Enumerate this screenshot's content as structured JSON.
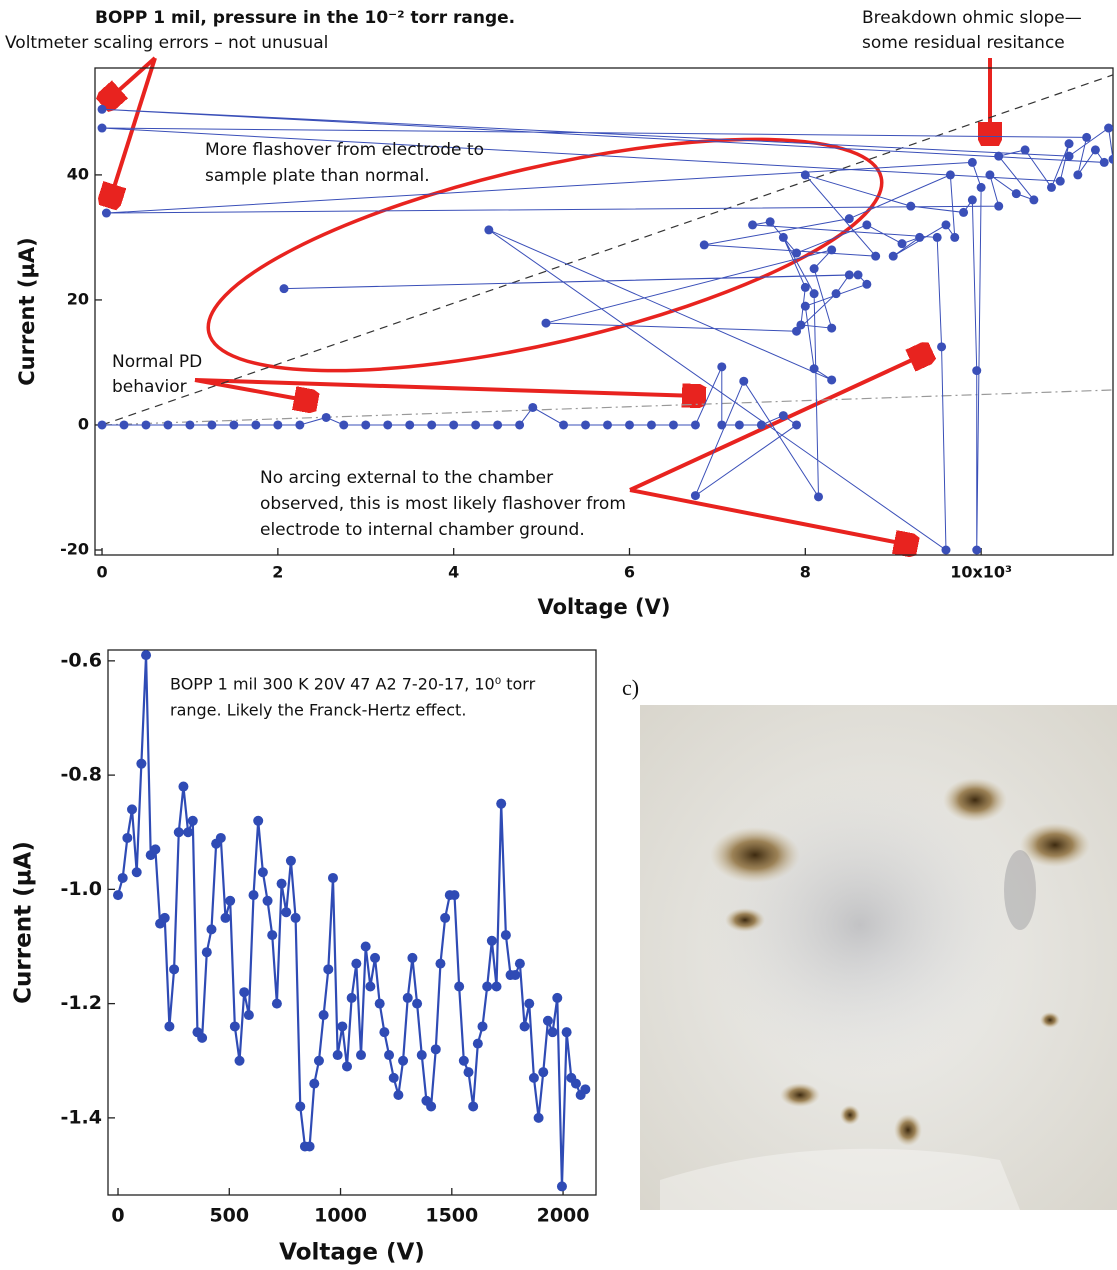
{
  "chart_data": [
    {
      "type": "line",
      "title": "BOPP 1 mil, pressure in the 10⁻² torr range.",
      "annotations": [
        [
          "Voltmeter scaling errors – not unusual"
        ],
        [
          "Breakdown ohmic slope—",
          "some residual resitance"
        ],
        [
          "More flashover from electrode to",
          "sample plate than normal."
        ],
        [
          "Normal PD",
          "behavior"
        ],
        [
          "No arcing external to the chamber",
          "observed, this is most likely flashover from",
          "electrode to internal chamber ground."
        ]
      ],
      "x_label": "Voltage (V)",
      "y_label": "Current (µA)",
      "xlim": [
        -0.08,
        11.5
      ],
      "ylim": [
        -20.8,
        57.1
      ],
      "xticks": [
        0,
        2,
        4,
        6,
        8,
        {
          "value": 10,
          "label": "10x10³"
        }
      ],
      "yticks": [
        -20,
        0,
        20,
        40
      ],
      "reference_lines": [
        {
          "x": [
            0,
            11.5
          ],
          "y": [
            0,
            56
          ],
          "dash": "8 6",
          "color": "#333333"
        },
        {
          "x": [
            0,
            11.5
          ],
          "y": [
            0,
            5.6
          ],
          "dash": "10 4 2 4",
          "color": "#999999"
        }
      ],
      "x": [
        0,
        0.25,
        0.5,
        0.75,
        1,
        1.25,
        1.5,
        1.75,
        2,
        2.25,
        2.55,
        2.75,
        3,
        3.25,
        3.5,
        3.75,
        4,
        4.25,
        4.5,
        4.75,
        4.9,
        5.25,
        5.5,
        5.75,
        6,
        6.25,
        6.5,
        6.75,
        7.05,
        7.05,
        7.25,
        7.5,
        7.75,
        7.9,
        6.75,
        7.3,
        8.15,
        8.1,
        7.75,
        8.0,
        7.95,
        8.3,
        8.1,
        8.3,
        5.05,
        7.9,
        8.35,
        8.5,
        2.07,
        8.6,
        8.7,
        8.0,
        8.1,
        8.3,
        4.4,
        9.6,
        9.55,
        9.5,
        7.4,
        7.6,
        7.9,
        8.7,
        9.1,
        9.3,
        9.0,
        9.6,
        9.7,
        9.65,
        8.5,
        6.85,
        8.8,
        8.0,
        9.2,
        9.8,
        9.9,
        9.95,
        9.95,
        10.0,
        9.9,
        0.05,
        10.2,
        10.1,
        10.4,
        10.6,
        10.2,
        10.5,
        10.8,
        11.0,
        10.9,
        0,
        11.2,
        11.1,
        11.3,
        11.4,
        0,
        11.0,
        11.45,
        11.5
      ],
      "series": [
        {
          "color": "#3a4fb8",
          "values": [
            0,
            0,
            0,
            0,
            0,
            0,
            0,
            0,
            0,
            0,
            1.2,
            0,
            0,
            0,
            0,
            0,
            0,
            0,
            0,
            0,
            2.8,
            0,
            0,
            0,
            0,
            0,
            0,
            0,
            9.3,
            0,
            0,
            0,
            1.5,
            0,
            -11.3,
            7,
            -11.5,
            21,
            30,
            22,
            16,
            15.5,
            25,
            28,
            16.3,
            15,
            21,
            24,
            21.8,
            24,
            22.5,
            19,
            9,
            7.2,
            31.2,
            -20,
            12.5,
            30,
            32,
            32.5,
            27.5,
            32,
            29,
            30,
            27,
            32,
            30,
            40,
            33,
            28.8,
            27,
            40,
            35,
            34,
            36,
            8.7,
            -20,
            38,
            42,
            33.9,
            35,
            40,
            37,
            36,
            43,
            44,
            38,
            45,
            39,
            47.5,
            46,
            40,
            44,
            42,
            50.5,
            43,
            47.5,
            42.5
          ]
        }
      ]
    },
    {
      "type": "line",
      "annotations": [
        [
          "BOPP 1 mil 300 K 20V 47 A2 7-20-17, 10⁰ torr",
          "range. Likely the Franck-Hertz effect."
        ]
      ],
      "x_label": "Voltage (V)",
      "y_label": "Current (µA)",
      "xlim": [
        -45,
        2148
      ],
      "ylim": [
        -1.535,
        -0.581
      ],
      "xticks": [
        0,
        500,
        1000,
        1500,
        2000
      ],
      "yticks": [
        -0.6,
        -0.8,
        {
          "value": -1,
          "label": "-1.0"
        },
        -1.2,
        -1.4
      ],
      "x": [
        0,
        21,
        42,
        63,
        84,
        105,
        126,
        147,
        168,
        189,
        210,
        231,
        252,
        273,
        294,
        315,
        336,
        357,
        378,
        399,
        420,
        441,
        462,
        483,
        504,
        525,
        546,
        567,
        588,
        609,
        630,
        651,
        672,
        693,
        714,
        735,
        756,
        777,
        798,
        819,
        840,
        861,
        882,
        903,
        924,
        945,
        966,
        987,
        1008,
        1029,
        1050,
        1071,
        1092,
        1113,
        1134,
        1155,
        1176,
        1197,
        1218,
        1239,
        1260,
        1281,
        1302,
        1323,
        1344,
        1365,
        1386,
        1407,
        1428,
        1449,
        1470,
        1491,
        1512,
        1533,
        1554,
        1575,
        1596,
        1617,
        1638,
        1659,
        1680,
        1701,
        1722,
        1743,
        1764,
        1785,
        1806,
        1827,
        1848,
        1869,
        1890,
        1911,
        1932,
        1953,
        1974,
        1995,
        2016,
        2037,
        2058,
        2079,
        2100
      ],
      "series": [
        {
          "color": "#2f4bb5",
          "values": [
            -1.01,
            -0.98,
            -0.91,
            -0.86,
            -0.97,
            -0.78,
            -0.59,
            -0.94,
            -0.93,
            -1.06,
            -1.05,
            -1.24,
            -1.14,
            -0.9,
            -0.82,
            -0.9,
            -0.88,
            -1.25,
            -1.26,
            -1.11,
            -1.07,
            -0.92,
            -0.91,
            -1.05,
            -1.02,
            -1.24,
            -1.3,
            -1.18,
            -1.22,
            -1.01,
            -0.88,
            -0.97,
            -1.02,
            -1.08,
            -1.2,
            -0.99,
            -1.04,
            -0.95,
            -1.05,
            -1.38,
            -1.45,
            -1.45,
            -1.34,
            -1.3,
            -1.22,
            -1.14,
            -0.98,
            -1.29,
            -1.24,
            -1.31,
            -1.19,
            -1.13,
            -1.29,
            -1.1,
            -1.17,
            -1.12,
            -1.2,
            -1.25,
            -1.29,
            -1.33,
            -1.36,
            -1.3,
            -1.19,
            -1.12,
            -1.2,
            -1.29,
            -1.37,
            -1.38,
            -1.28,
            -1.13,
            -1.05,
            -1.01,
            -1.01,
            -1.17,
            -1.3,
            -1.32,
            -1.38,
            -1.27,
            -1.24,
            -1.17,
            -1.09,
            -1.17,
            -0.85,
            -1.08,
            -1.15,
            -1.15,
            -1.13,
            -1.24,
            -1.2,
            -1.33,
            -1.4,
            -1.32,
            -1.23,
            -1.25,
            -1.19,
            -1.52,
            -1.25,
            -1.33,
            -1.34,
            -1.36,
            -1.35
          ]
        }
      ]
    }
  ],
  "panel_label": "c)"
}
